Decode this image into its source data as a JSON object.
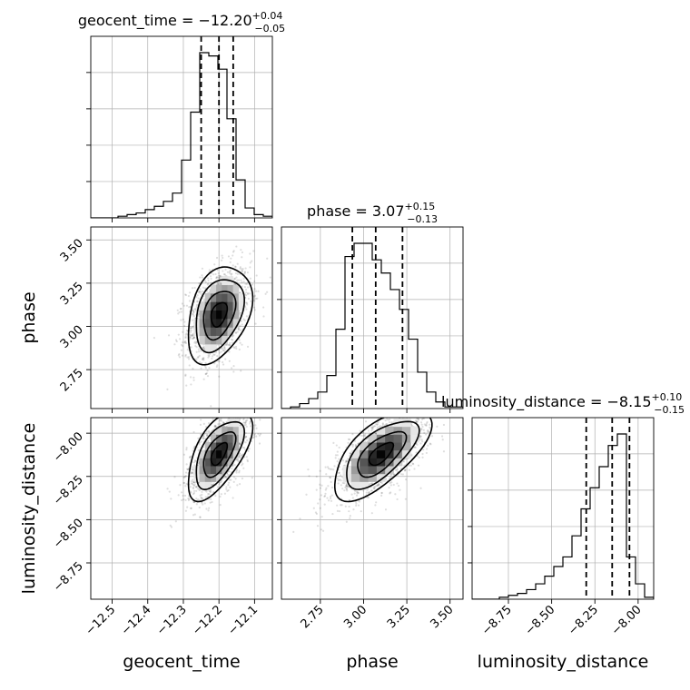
{
  "chart_data": {
    "type": "corner",
    "parameters": [
      {
        "name": "geocent_time",
        "label": "geocent_time",
        "range": [
          -12.56,
          -12.05
        ],
        "ticks": [
          -12.5,
          -12.4,
          -12.3,
          -12.2,
          -12.1
        ],
        "tick_labels": [
          "−12.5",
          "−12.4",
          "−12.3",
          "−12.2",
          "−12.1"
        ],
        "title": {
          "prefix": "geocent_time = −12.20",
          "upper": "+0.04",
          "lower": "−0.05"
        },
        "quantiles": [
          -12.25,
          -12.2,
          -12.16
        ],
        "hist": {
          "start": -12.56,
          "width": 0.0255,
          "counts": [
            0,
            0,
            0,
            1,
            2,
            3,
            5,
            7,
            10,
            15,
            35,
            64,
            100,
            98,
            90,
            60,
            23,
            6,
            2,
            1
          ]
        }
      },
      {
        "name": "phase",
        "label": "phase",
        "range": [
          2.525,
          3.575
        ],
        "ticks": [
          2.75,
          3.0,
          3.25,
          3.5
        ],
        "tick_labels": [
          "2.75",
          "3.00",
          "3.25",
          "3.50"
        ],
        "title": {
          "prefix": "phase = 3.07",
          "upper": "+0.15",
          "lower": "−0.13"
        },
        "quantiles": [
          2.935,
          3.07,
          3.225
        ],
        "hist": {
          "start": 2.525,
          "width": 0.0525,
          "counts": [
            0,
            1,
            3,
            6,
            10,
            20,
            48,
            92,
            100,
            100,
            90,
            82,
            72,
            60,
            42,
            22,
            10,
            4,
            1,
            1
          ]
        }
      },
      {
        "name": "luminosity_distance",
        "label": "luminosity_distance",
        "range": [
          -8.96,
          -7.91
        ],
        "ticks": [
          -8.75,
          -8.5,
          -8.25,
          -8.0
        ],
        "tick_labels": [
          "−8.75",
          "−8.50",
          "−8.25",
          "−8.00"
        ],
        "title": {
          "prefix": "luminosity_distance = −8.15",
          "upper": "+0.10",
          "lower": "−0.15"
        },
        "quantiles": [
          -8.3,
          -8.15,
          -8.05
        ],
        "hist": {
          "start": -8.96,
          "width": 0.0525,
          "counts": [
            0,
            0,
            0,
            1,
            2,
            3,
            5,
            8,
            12,
            17,
            22,
            33,
            47,
            58,
            69,
            80,
            86,
            22,
            8,
            1
          ]
        }
      }
    ],
    "pairs": [
      {
        "x": 0,
        "y": 1,
        "mean": [
          -12.2,
          3.07
        ],
        "std": [
          0.045,
          0.14
        ],
        "rho": 0.35
      },
      {
        "x": 0,
        "y": 2,
        "mean": [
          -12.2,
          -8.12
        ],
        "std": [
          0.045,
          0.13
        ],
        "rho": 0.6
      },
      {
        "x": 1,
        "y": 2,
        "mean": [
          3.1,
          -8.12
        ],
        "std": [
          0.14,
          0.13
        ],
        "rho": 0.65
      }
    ],
    "grid": true,
    "histtype": "step",
    "quantile_style": "dashed",
    "colors": {
      "line": "#000000",
      "grid": "#b0b0b0",
      "scatter": "#000000"
    }
  }
}
